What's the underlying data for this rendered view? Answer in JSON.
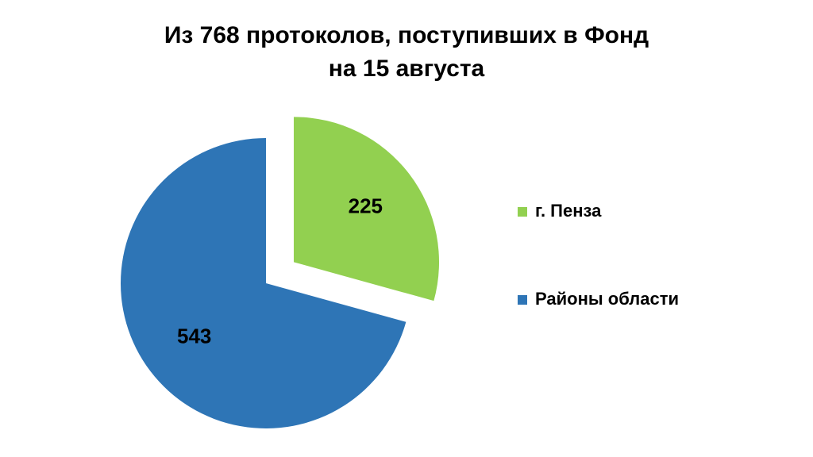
{
  "chart_data": {
    "type": "pie",
    "title": [
      "Из 768 протоколов, поступивших в Фонд",
      "на 15 августа"
    ],
    "categories": [
      "г. Пенза",
      "Районы области"
    ],
    "values": [
      225,
      543
    ],
    "colors": [
      "#92d050",
      "#2e75b6"
    ],
    "exploded": [
      true,
      false
    ],
    "legend": "right"
  }
}
